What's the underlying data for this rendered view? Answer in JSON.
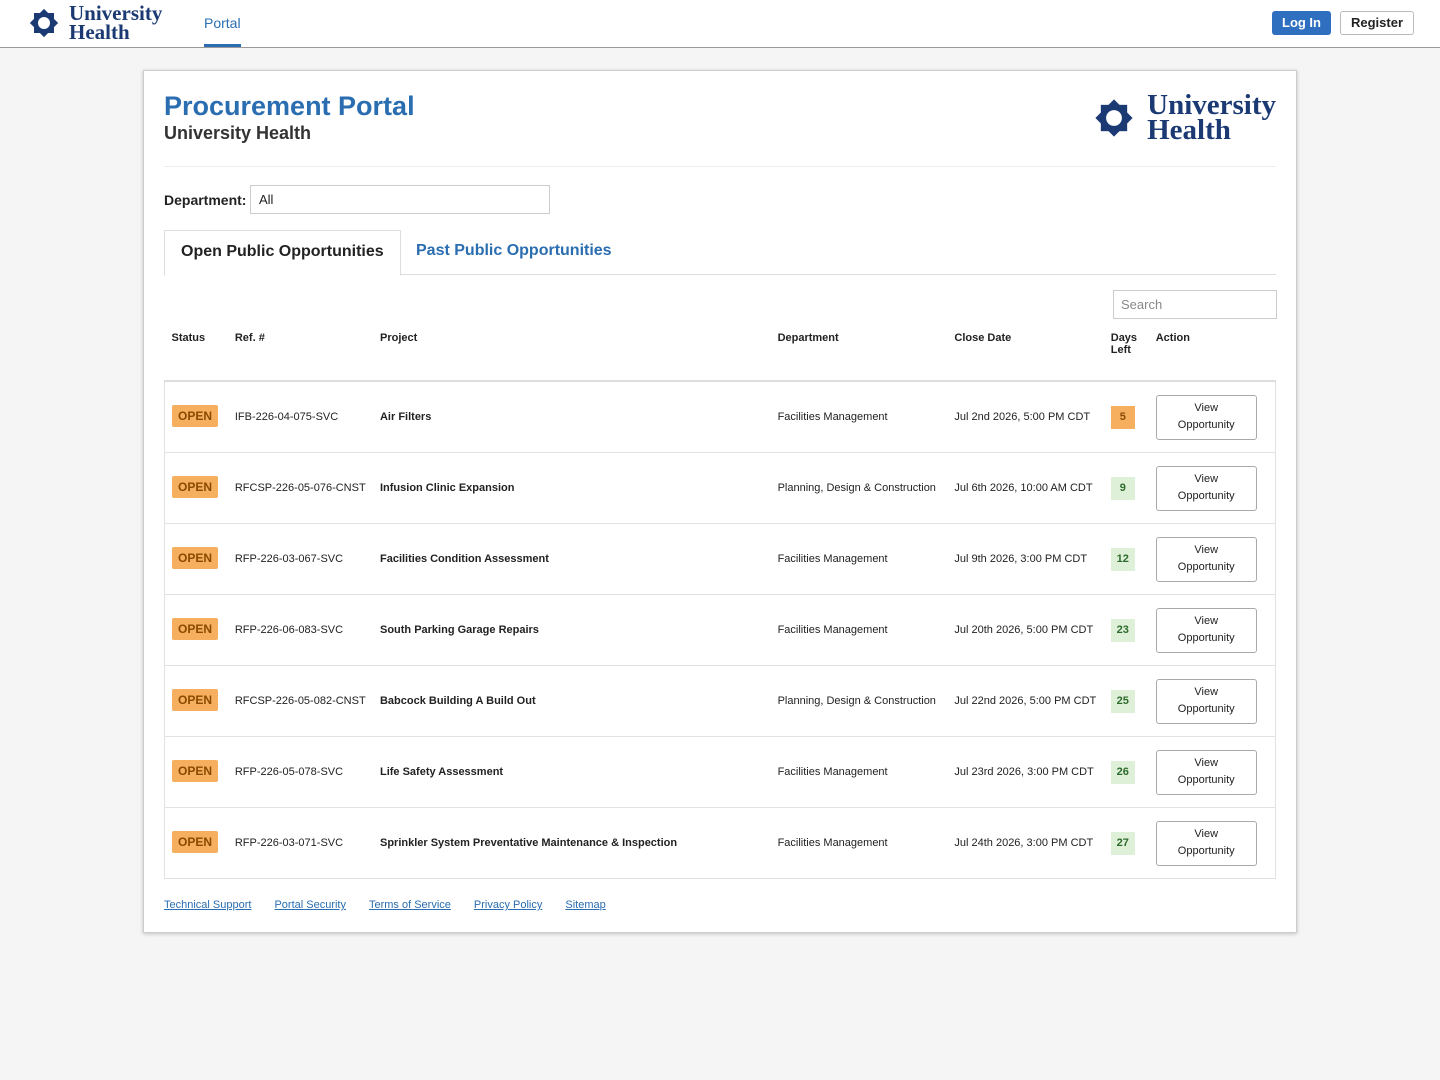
{
  "header": {
    "brand": [
      "University",
      "Health"
    ],
    "nav": "Portal",
    "login": "Log In",
    "register": "Register"
  },
  "card": {
    "title": "Procurement Portal",
    "subtitle": "University Health",
    "logo": [
      "University",
      "Health"
    ],
    "department_label": "Department:",
    "department_value": "All",
    "tabs": [
      "Open Public Opportunities",
      "Past Public Opportunities"
    ],
    "search": "Search"
  },
  "table": {
    "columns": [
      "Status",
      "Ref. #",
      "Project",
      "Department",
      "Close Date",
      "Days Left",
      "Action"
    ],
    "rows": [
      [
        "OPEN",
        "IFB-226-04-075-SVC",
        "Air Filters",
        "Facilities Management",
        "Jul 2nd 2026, 5:00 PM CDT",
        "5",
        "View Opportunity"
      ],
      [
        "OPEN",
        "RFCSP-226-05-076-CNST",
        "Infusion Clinic Expansion",
        "Planning, Design & Construction",
        "Jul 6th 2026, 10:00 AM CDT",
        "9",
        "View Opportunity"
      ],
      [
        "OPEN",
        "RFP-226-03-067-SVC",
        "Facilities Condition Assessment",
        "Facilities Management",
        "Jul 9th 2026, 3:00 PM CDT",
        "12",
        "View Opportunity"
      ],
      [
        "OPEN",
        "RFP-226-06-083-SVC",
        "South Parking Garage Repairs",
        "Facilities Management",
        "Jul 20th 2026, 5:00 PM CDT",
        "23",
        "View Opportunity"
      ],
      [
        "OPEN",
        "RFCSP-226-05-082-CNST",
        "Babcock Building A Build Out",
        "Planning, Design & Construction",
        "Jul 22nd 2026, 5:00 PM CDT",
        "25",
        "View Opportunity"
      ],
      [
        "OPEN",
        "RFP-226-05-078-SVC",
        "Life Safety Assessment",
        "Facilities Management",
        "Jul 23rd 2026, 3:00 PM CDT",
        "26",
        "View Opportunity"
      ],
      [
        "OPEN",
        "RFP-226-03-071-SVC",
        "Sprinkler System Preventative Maintenance & Inspection",
        "Facilities Management",
        "Jul 24th 2026, 3:00 PM CDT",
        "27",
        "View Opportunity"
      ]
    ]
  },
  "footer": [
    "Technical Support",
    "Portal Security",
    "Terms of Service",
    "Privacy Policy",
    "Sitemap"
  ]
}
